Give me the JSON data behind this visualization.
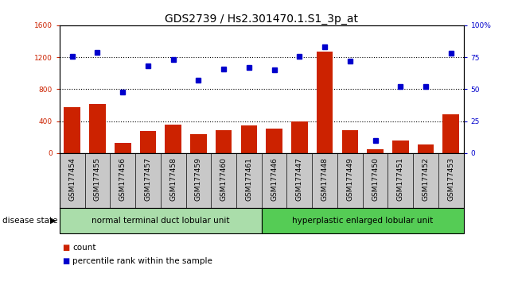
{
  "title": "GDS2739 / Hs2.301470.1.S1_3p_at",
  "categories": [
    "GSM177454",
    "GSM177455",
    "GSM177456",
    "GSM177457",
    "GSM177458",
    "GSM177459",
    "GSM177460",
    "GSM177461",
    "GSM177446",
    "GSM177447",
    "GSM177448",
    "GSM177449",
    "GSM177450",
    "GSM177451",
    "GSM177452",
    "GSM177453"
  ],
  "counts": [
    580,
    620,
    130,
    280,
    360,
    240,
    290,
    350,
    310,
    400,
    1270,
    290,
    50,
    160,
    110,
    490
  ],
  "percentiles": [
    76,
    79,
    48,
    68,
    73,
    57,
    66,
    67,
    65,
    76,
    83,
    72,
    10,
    52,
    52,
    78
  ],
  "group1_label": "normal terminal duct lobular unit",
  "group2_label": "hyperplastic enlarged lobular unit",
  "group1_count": 8,
  "group2_count": 8,
  "left_ylim": [
    0,
    1600
  ],
  "right_ylim": [
    0,
    100
  ],
  "left_yticks": [
    0,
    400,
    800,
    1200,
    1600
  ],
  "right_yticks": [
    0,
    25,
    50,
    75,
    100
  ],
  "right_yticklabels": [
    "0",
    "25",
    "50",
    "75",
    "100%"
  ],
  "bar_color": "#cc2200",
  "dot_color": "#0000cc",
  "grid_color": "#000000",
  "xtick_bg": "#c8c8c8",
  "group1_bg": "#aaddaa",
  "group2_bg": "#55cc55",
  "disease_state_label": "disease state",
  "legend_count_label": "count",
  "legend_pct_label": "percentile rank within the sample",
  "title_fontsize": 10,
  "tick_fontsize": 6.5,
  "label_fontsize": 7.5
}
